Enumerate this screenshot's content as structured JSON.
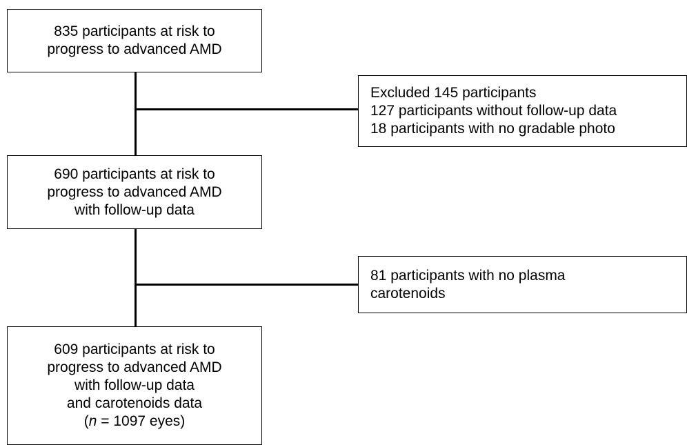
{
  "flow": {
    "box1": {
      "lines": [
        "835 participants at risk to",
        "progress to advanced AMD"
      ]
    },
    "exclusion1": {
      "lines": [
        "Excluded 145 participants",
        "127 participants without follow-up data",
        "18 participants with no gradable photo"
      ]
    },
    "box2": {
      "lines": [
        "690 participants at risk to",
        "progress to advanced AMD",
        "with follow-up data"
      ]
    },
    "exclusion2": {
      "lines": [
        "81 participants with no plasma",
        "carotenoids"
      ]
    },
    "box3": {
      "lines": [
        "609 participants at risk to",
        "progress to advanced AMD",
        "with follow-up data",
        "and carotenoids data"
      ],
      "n_open": "(",
      "n_symbol": "n",
      "n_rest": " = 1097 eyes)"
    }
  }
}
